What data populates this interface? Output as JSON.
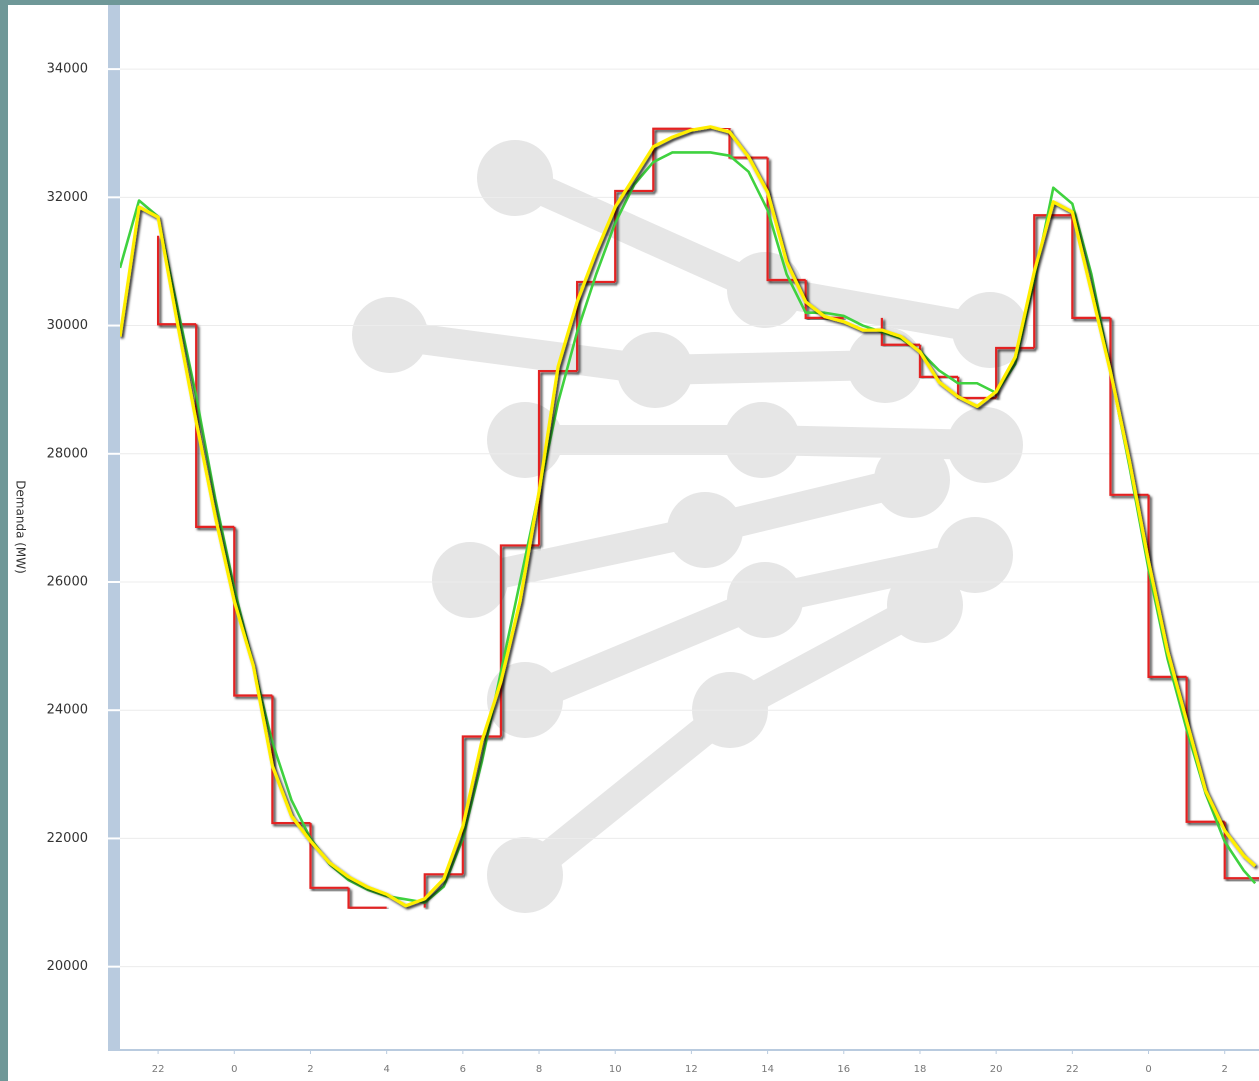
{
  "chart_data": {
    "type": "line",
    "ylabel": "Demanda (MW)",
    "xlim": [
      21,
      50.9
    ],
    "ylim": [
      18700,
      35000
    ],
    "xticks": [
      22,
      {
        "value": 24,
        "label": "0"
      },
      {
        "value": 26,
        "label": "2"
      },
      {
        "value": 28,
        "label": "4"
      },
      {
        "value": 30,
        "label": "6"
      },
      {
        "value": 32,
        "label": "8"
      },
      {
        "value": 34,
        "label": "10"
      },
      {
        "value": 36,
        "label": "12"
      },
      {
        "value": 38,
        "label": "14"
      },
      {
        "value": 40,
        "label": "16"
      },
      {
        "value": 42,
        "label": "18"
      },
      {
        "value": 44,
        "label": "20"
      },
      {
        "value": 46,
        "label": "22"
      },
      {
        "value": 48,
        "label": "0"
      },
      {
        "value": 50,
        "label": "2"
      }
    ],
    "yticks": [
      20000,
      22000,
      24000,
      26000,
      28000,
      30000,
      32000,
      34000
    ],
    "grid": true,
    "x": [
      21,
      21.5,
      22,
      22.5,
      23,
      23.5,
      24,
      24.5,
      25,
      25.5,
      26,
      26.5,
      27,
      27.5,
      28,
      28.5,
      29,
      29.5,
      30,
      30.5,
      31,
      31.5,
      32,
      32.5,
      33,
      33.5,
      34,
      34.5,
      35,
      35.5,
      36,
      36.5,
      37,
      37.5,
      38,
      38.5,
      39,
      39.5,
      40,
      40.5,
      41,
      41.5,
      42,
      42.5,
      43,
      43.5,
      44,
      44.5,
      45,
      45.5,
      46,
      46.5,
      47,
      47.5,
      48,
      48.5,
      49,
      49.5,
      50,
      50.5,
      50.8
    ],
    "series": [
      {
        "color": "#e32222",
        "style": "step",
        "x": [
          21,
          22,
          23,
          24,
          25,
          26,
          27,
          28,
          29,
          30,
          31,
          32,
          33,
          34,
          35,
          36,
          37,
          38,
          39,
          40,
          41,
          42,
          43,
          44,
          45,
          46,
          47,
          48,
          49,
          50
        ],
        "values": [
          31400,
          30020,
          26860,
          24230,
          22240,
          21230,
          20920,
          20920,
          21440,
          23590,
          26570,
          29290,
          30680,
          32100,
          33070,
          33080,
          32620,
          30710,
          30120,
          30120,
          29700,
          29200,
          28870,
          29650,
          31720,
          30120,
          27360,
          24520,
          22260,
          21380
        ]
      },
      {
        "color": "#3fd23f",
        "style": "line",
        "values": [
          30900,
          31950,
          31700,
          30300,
          28900,
          27300,
          25900,
          24700,
          23500,
          22600,
          22000,
          21600,
          21350,
          21200,
          21100,
          21050,
          21000,
          21250,
          22000,
          23200,
          24600,
          26000,
          27400,
          28800,
          29900,
          30800,
          31600,
          32200,
          32550,
          32700,
          32700,
          32700,
          32650,
          32400,
          31800,
          30800,
          30200,
          30200,
          30150,
          30000,
          29900,
          29800,
          29600,
          29300,
          29100,
          29100,
          28950,
          29400,
          30700,
          32150,
          31900,
          30800,
          29300,
          27800,
          26200,
          24800,
          23700,
          22700,
          21950,
          21500,
          21300
        ]
      },
      {
        "color": "#ffee00",
        "style": "line",
        "values": [
          29830,
          31850,
          31690,
          30060,
          28500,
          27020,
          25700,
          24690,
          23130,
          22350,
          21960,
          21620,
          21400,
          21240,
          21130,
          20950,
          21060,
          21370,
          22190,
          23520,
          24450,
          25700,
          27410,
          29360,
          30370,
          31150,
          31850,
          32320,
          32790,
          32940,
          33050,
          33100,
          33020,
          32630,
          32080,
          30990,
          30370,
          30140,
          30060,
          29930,
          29930,
          29830,
          29590,
          29120,
          28890,
          28740,
          28970,
          29510,
          30840,
          31930,
          31770,
          30530,
          29280,
          27880,
          26320,
          24920,
          23830,
          22740,
          22120,
          21730,
          21570
        ]
      }
    ]
  }
}
